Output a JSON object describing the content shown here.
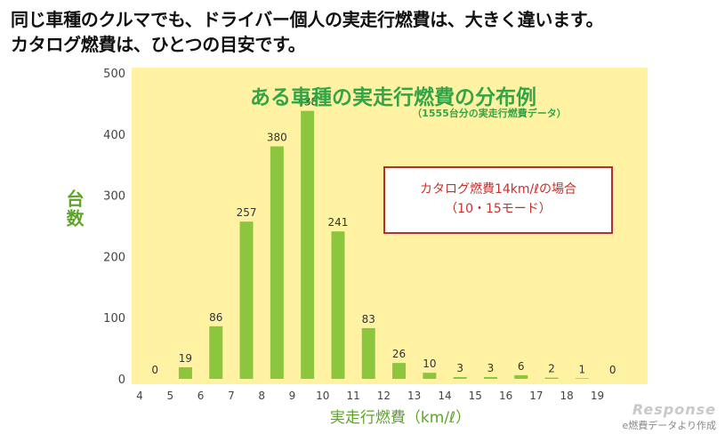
{
  "headline": {
    "line1": "同じ車種のクルマでも、ドライバー個人の実走行燃費は、大きく違います。",
    "line2": "カタログ燃費は、ひとつの目安です。"
  },
  "chart_data": {
    "type": "bar",
    "title": "ある車種の実走行燃費の分布例",
    "subtitle": "（1555台分の実走行燃費データ）",
    "xlabel": "実走行燃費（km/ℓ）",
    "ylabel": "台数",
    "categories": [
      "4",
      "5",
      "6",
      "7",
      "8",
      "9",
      "10",
      "11",
      "12",
      "13",
      "14",
      "15",
      "16",
      "17",
      "18",
      "19"
    ],
    "values": [
      0,
      19,
      86,
      257,
      380,
      438,
      241,
      83,
      26,
      10,
      3,
      3,
      6,
      2,
      1,
      0
    ],
    "data_labels": [
      "0",
      "19",
      "86",
      "257",
      "380",
      "438",
      "241",
      "83",
      "26",
      "10",
      "3",
      "3",
      "6",
      "2",
      "1",
      "0"
    ],
    "ylim": [
      0,
      500
    ],
    "yticks": [
      0,
      100,
      200,
      300,
      400,
      500
    ],
    "grid": false,
    "colors": {
      "bar": "#8cc63f",
      "plot_background": "#fff3a3",
      "text": "#5da528"
    }
  },
  "annotation": {
    "line1": "カタログ燃費14km/ℓの場合",
    "line2": "（10・15モード）"
  },
  "credit": {
    "logo": "Response",
    "text": "e燃費データより作成"
  }
}
